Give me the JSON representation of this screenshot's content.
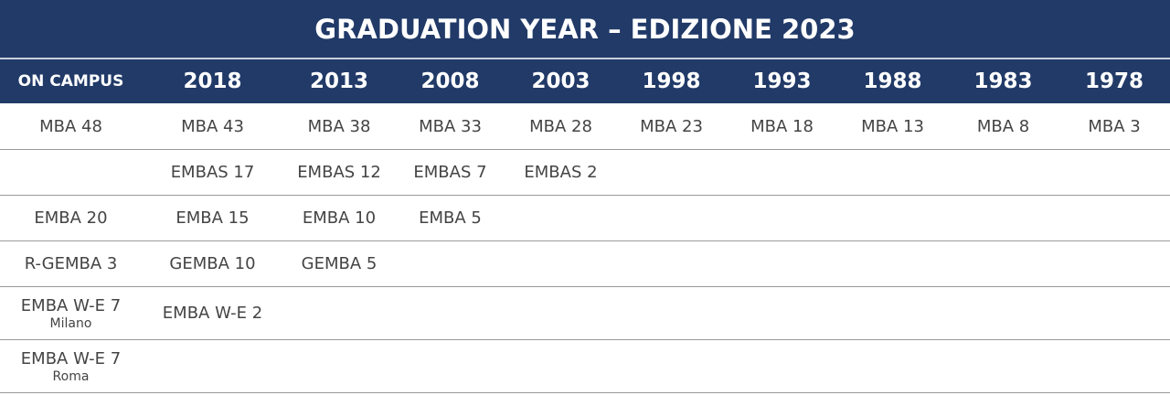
{
  "header": {
    "title": "GRADUATION YEAR – EDIZIONE 2023"
  },
  "table": {
    "columns": [
      "ON CAMPUS",
      "2018",
      "2013",
      "2008",
      "2003",
      "1998",
      "1993",
      "1988",
      "1983",
      "1978"
    ],
    "rows": [
      [
        "MBA 48",
        "MBA 43",
        "MBA 38",
        "MBA 33",
        "MBA 28",
        "MBA 23",
        "MBA 18",
        "MBA 13",
        "MBA 8",
        "MBA 3"
      ],
      [
        null,
        "EMBAS 17",
        "EMBAS 12",
        "EMBAS 7",
        "EMBAS 2",
        null,
        null,
        null,
        null,
        null
      ],
      [
        "EMBA 20",
        "EMBA 15",
        "EMBA 10",
        "EMBA 5",
        null,
        null,
        null,
        null,
        null,
        null
      ],
      [
        "R-GEMBA 3",
        "GEMBA 10",
        "GEMBA 5",
        null,
        null,
        null,
        null,
        null,
        null,
        null
      ],
      [
        {
          "label": "EMBA W-E 7",
          "sublabel": "Milano"
        },
        "EMBA W-E 2",
        null,
        null,
        null,
        null,
        null,
        null,
        null,
        null
      ],
      [
        {
          "label": "EMBA W-E 7",
          "sublabel": "Roma"
        },
        null,
        null,
        null,
        null,
        null,
        null,
        null,
        null,
        null
      ]
    ]
  }
}
